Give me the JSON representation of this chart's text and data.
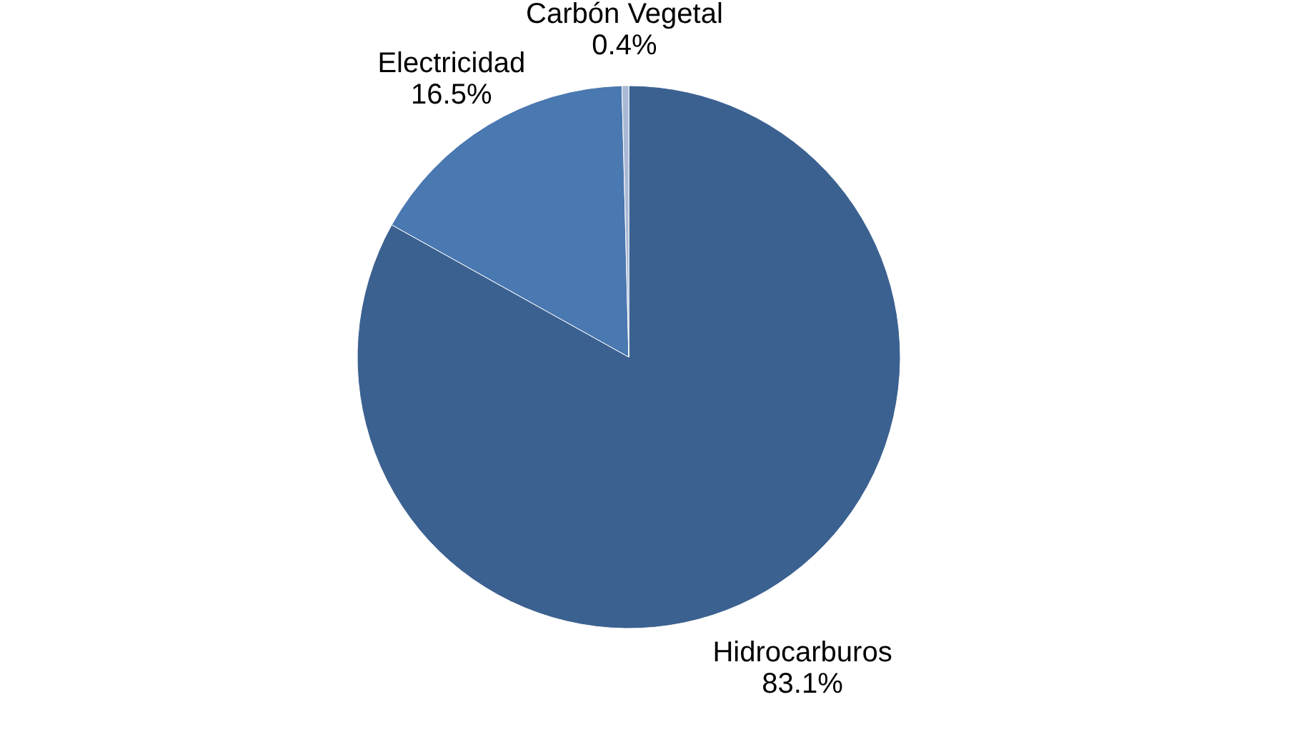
{
  "chart_data": {
    "type": "pie",
    "categories": [
      "Hidrocarburos",
      "Electricidad",
      "Carbón Vegetal"
    ],
    "values": [
      83.1,
      16.5,
      0.4
    ],
    "value_labels": [
      "83.1%",
      "16.5%",
      "0.4%"
    ],
    "colors": [
      "#3b6190",
      "#4a78b0",
      "#a9b8d4"
    ],
    "legend": false
  }
}
